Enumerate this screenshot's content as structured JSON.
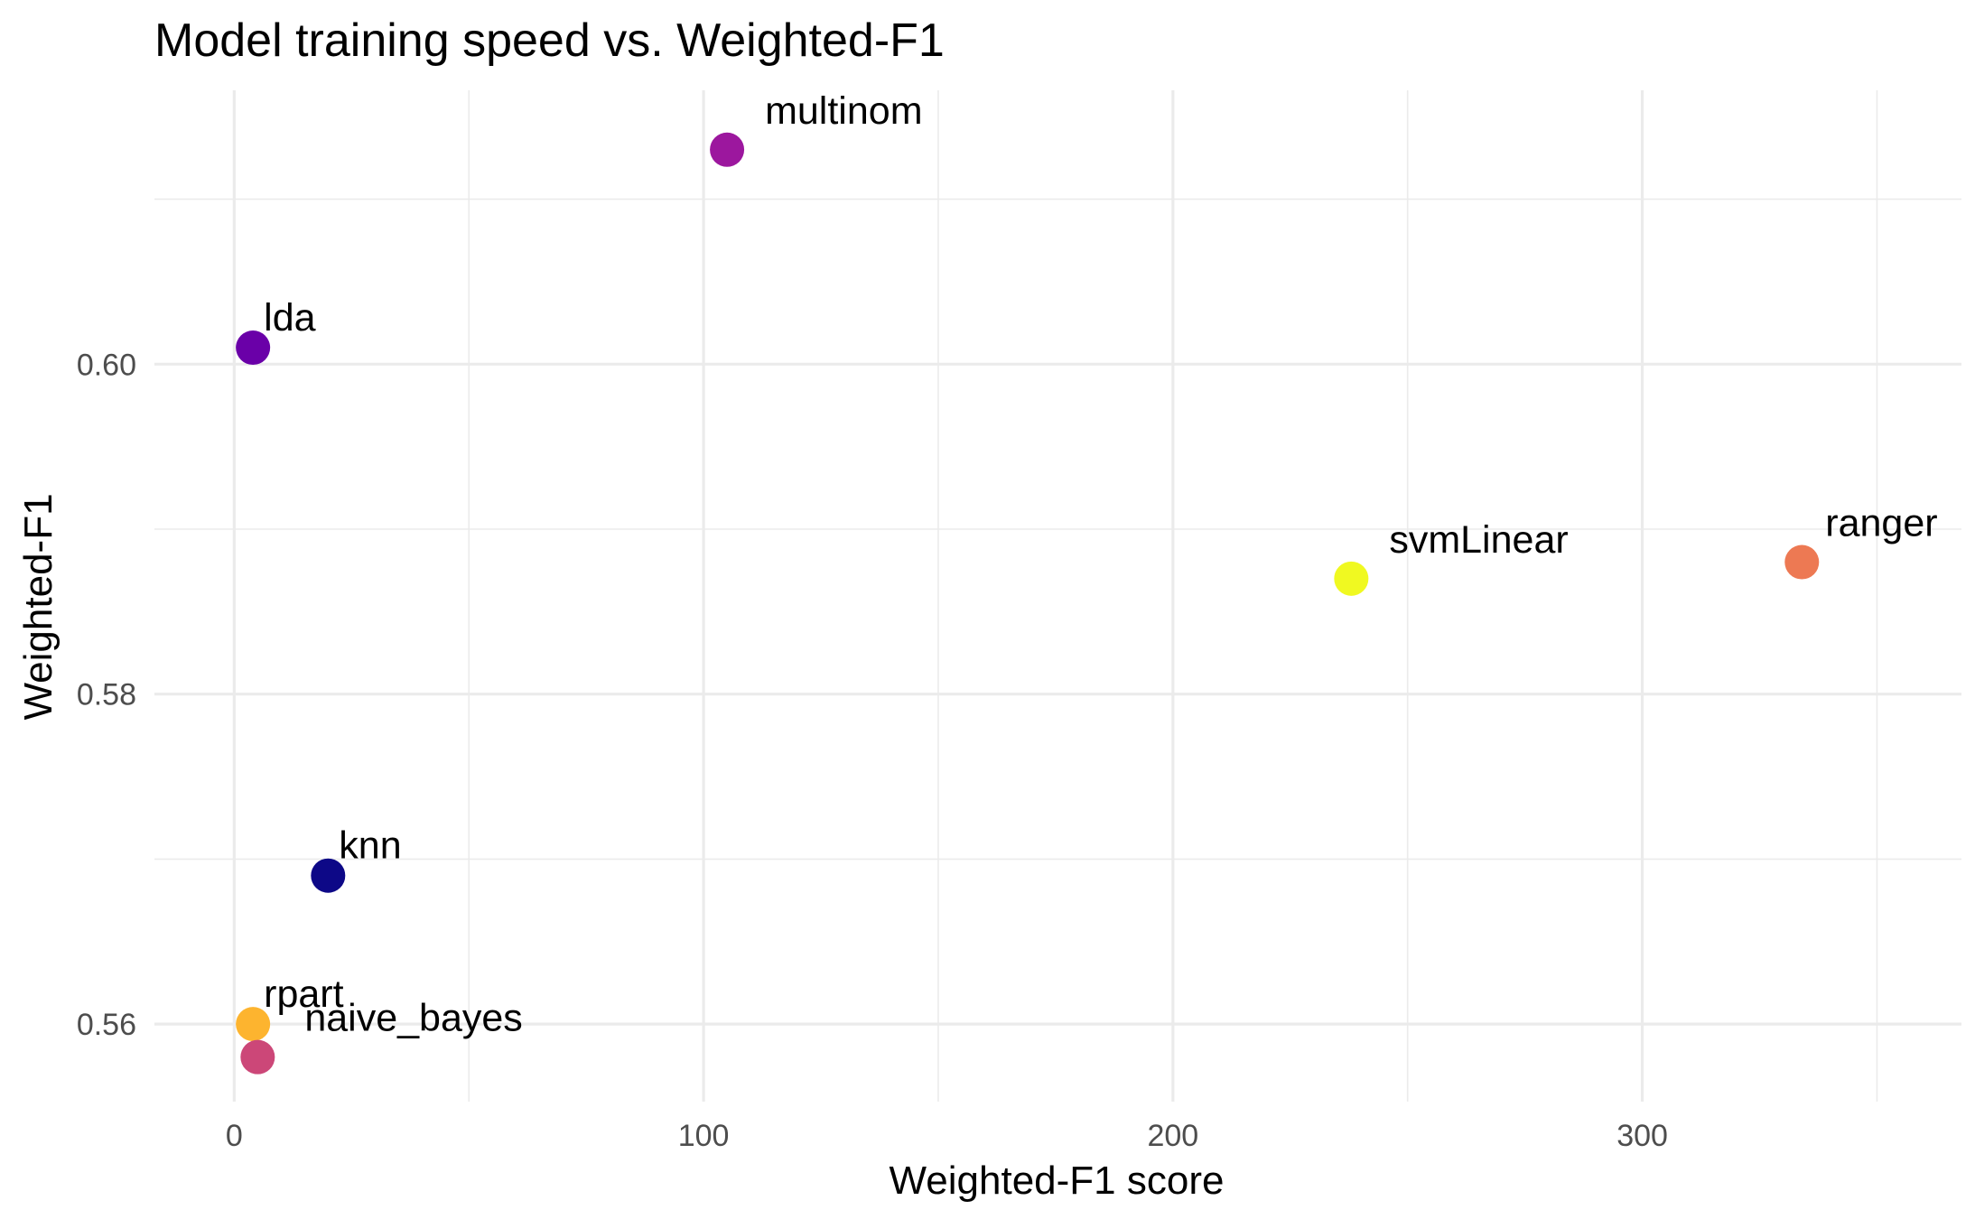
{
  "chart_data": {
    "type": "scatter",
    "title": "Model training speed vs. Weighted-F1",
    "xlabel": "Weighted-F1 score",
    "ylabel": "Weighted-F1",
    "xlim": [
      -17,
      368
    ],
    "ylim": [
      0.5553,
      0.6166
    ],
    "x_ticks": [
      0,
      100,
      200,
      300
    ],
    "x_tick_labels": [
      "0",
      "100",
      "200",
      "300"
    ],
    "y_ticks": [
      0.56,
      0.58,
      0.6
    ],
    "y_tick_labels": [
      "0.56",
      "0.58",
      "0.60"
    ],
    "grid": true,
    "legend": "none",
    "points": [
      {
        "label": "multinom",
        "x": 105,
        "y": 0.613,
        "color": "#9c179e"
      },
      {
        "label": "lda",
        "x": 4,
        "y": 0.601,
        "color": "#6a00a8"
      },
      {
        "label": "svmLinear",
        "x": 238,
        "y": 0.587,
        "color": "#f0f921"
      },
      {
        "label": "ranger",
        "x": 334,
        "y": 0.588,
        "color": "#ed7953"
      },
      {
        "label": "knn",
        "x": 20,
        "y": 0.569,
        "color": "#0d0887"
      },
      {
        "label": "rpart",
        "x": 4,
        "y": 0.56,
        "color": "#fdb42f"
      },
      {
        "label": "naive_bayes",
        "x": 5,
        "y": 0.558,
        "color": "#cc4778"
      }
    ]
  }
}
